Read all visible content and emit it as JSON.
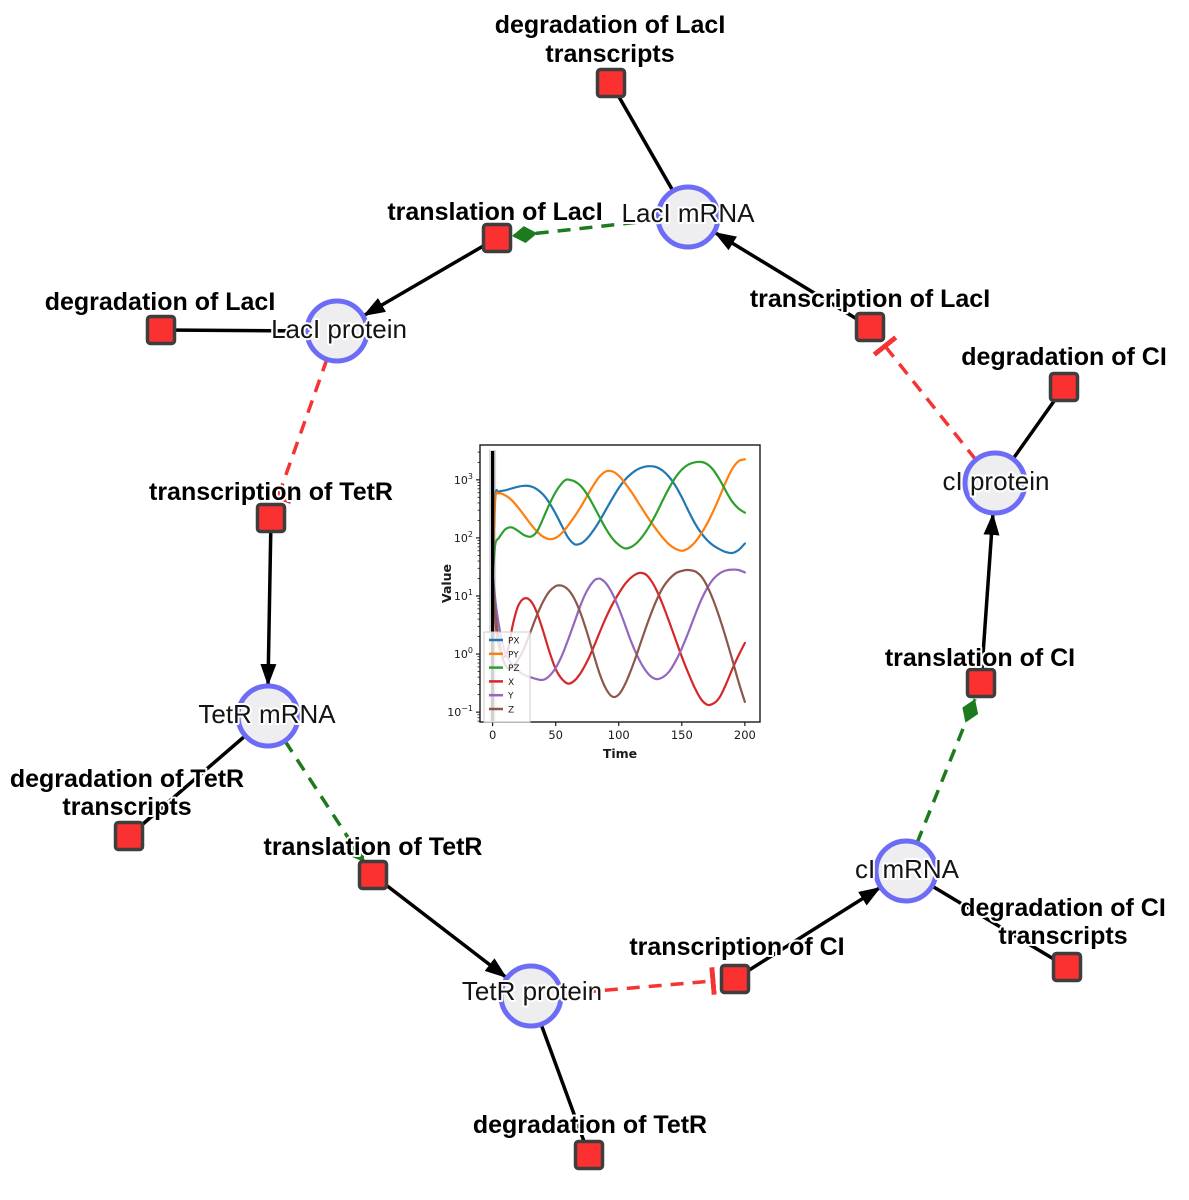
{
  "network": {
    "colors": {
      "species_fill": "#eeeef0",
      "species_border": "#6c6cf6",
      "reaction_fill": "#fb3131",
      "reaction_border": "#3e3e3e",
      "production_edge": "#000000",
      "activation_edge": "#1d7a1d",
      "inhibition_edge": "#f53434"
    },
    "species": [
      {
        "id": "laci-mrna",
        "label": "LacI mRNA"
      },
      {
        "id": "laci-protein",
        "label": "LacI protein"
      },
      {
        "id": "ci-protein",
        "label": "cI protein"
      },
      {
        "id": "tetr-mrna",
        "label": "TetR mRNA"
      },
      {
        "id": "tetr-protein",
        "label": "TetR protein"
      },
      {
        "id": "ci-mrna",
        "label": "cI mRNA"
      }
    ],
    "reactions": [
      {
        "id": "degradation-of-laci-transcripts",
        "lines": [
          "degradation of LacI",
          "transcripts"
        ]
      },
      {
        "id": "translation-of-laci",
        "lines": [
          "translation of LacI"
        ]
      },
      {
        "id": "degradation-of-laci",
        "lines": [
          "degradation of LacI"
        ]
      },
      {
        "id": "transcription-of-laci",
        "lines": [
          "transcription of LacI"
        ]
      },
      {
        "id": "degradation-of-ci",
        "lines": [
          "degradation of CI"
        ]
      },
      {
        "id": "transcription-of-tetr",
        "lines": [
          "transcription of TetR"
        ]
      },
      {
        "id": "degradation-of-tetr-transcripts",
        "lines": [
          "degradation of TetR",
          "transcripts"
        ]
      },
      {
        "id": "translation-of-tetr",
        "lines": [
          "translation of TetR"
        ]
      },
      {
        "id": "degradation-of-tetr",
        "lines": [
          "degradation of TetR"
        ]
      },
      {
        "id": "transcription-of-ci",
        "lines": [
          "transcription of CI"
        ]
      },
      {
        "id": "degradation-of-ci-transcripts",
        "lines": [
          "degradation of CI",
          "transcripts"
        ]
      },
      {
        "id": "translation-of-ci",
        "lines": [
          "translation of CI"
        ]
      }
    ]
  },
  "chart_data": {
    "type": "line",
    "title": "",
    "xlabel": "Time",
    "ylabel": "Value",
    "xlim": [
      -10,
      212
    ],
    "xticks": [
      0,
      50,
      100,
      150,
      200
    ],
    "yscale": "log",
    "ylim_log10": [
      -1.17,
      3.6
    ],
    "ytick_exponents": [
      3,
      2,
      1,
      0,
      -1
    ],
    "grid": false,
    "legend_position": "lower-left",
    "vline_x": 0,
    "series": [
      {
        "name": "PX",
        "color": "#1f77b4",
        "points": [
          [
            0,
            20
          ],
          [
            2,
            480
          ],
          [
            5,
            620
          ],
          [
            10,
            660
          ],
          [
            15,
            710
          ],
          [
            20,
            760
          ],
          [
            25,
            790
          ],
          [
            30,
            775
          ],
          [
            35,
            690
          ],
          [
            40,
            560
          ],
          [
            45,
            400
          ],
          [
            50,
            260
          ],
          [
            55,
            160
          ],
          [
            60,
            100
          ],
          [
            65,
            78
          ],
          [
            70,
            80
          ],
          [
            75,
            98
          ],
          [
            80,
            135
          ],
          [
            85,
            200
          ],
          [
            90,
            310
          ],
          [
            95,
            480
          ],
          [
            100,
            720
          ],
          [
            105,
            1000
          ],
          [
            110,
            1280
          ],
          [
            115,
            1520
          ],
          [
            120,
            1670
          ],
          [
            125,
            1720
          ],
          [
            130,
            1650
          ],
          [
            135,
            1430
          ],
          [
            140,
            1120
          ],
          [
            145,
            790
          ],
          [
            150,
            500
          ],
          [
            155,
            300
          ],
          [
            160,
            185
          ],
          [
            165,
            125
          ],
          [
            170,
            92
          ],
          [
            175,
            74
          ],
          [
            180,
            64
          ],
          [
            185,
            57
          ],
          [
            190,
            55
          ],
          [
            195,
            62
          ],
          [
            200,
            80
          ]
        ]
      },
      {
        "name": "PY",
        "color": "#ff7f0e",
        "points": [
          [
            0,
            20
          ],
          [
            2,
            430
          ],
          [
            5,
            580
          ],
          [
            10,
            540
          ],
          [
            15,
            450
          ],
          [
            20,
            340
          ],
          [
            25,
            245
          ],
          [
            30,
            175
          ],
          [
            35,
            130
          ],
          [
            40,
            105
          ],
          [
            45,
            95
          ],
          [
            50,
            100
          ],
          [
            55,
            122
          ],
          [
            60,
            165
          ],
          [
            65,
            235
          ],
          [
            70,
            345
          ],
          [
            75,
            530
          ],
          [
            80,
            810
          ],
          [
            85,
            1150
          ],
          [
            90,
            1400
          ],
          [
            95,
            1395
          ],
          [
            100,
            1180
          ],
          [
            105,
            880
          ],
          [
            110,
            620
          ],
          [
            115,
            420
          ],
          [
            120,
            285
          ],
          [
            125,
            195
          ],
          [
            130,
            138
          ],
          [
            135,
            100
          ],
          [
            140,
            77
          ],
          [
            145,
            65
          ],
          [
            150,
            60
          ],
          [
            155,
            66
          ],
          [
            160,
            82
          ],
          [
            165,
            115
          ],
          [
            170,
            175
          ],
          [
            175,
            290
          ],
          [
            180,
            510
          ],
          [
            185,
            930
          ],
          [
            190,
            1550
          ],
          [
            195,
            2100
          ],
          [
            200,
            2260
          ]
        ]
      },
      {
        "name": "PZ",
        "color": "#2ca02c",
        "points": [
          [
            0,
            20
          ],
          [
            2,
            75
          ],
          [
            5,
            100
          ],
          [
            10,
            140
          ],
          [
            15,
            152
          ],
          [
            20,
            133
          ],
          [
            25,
            112
          ],
          [
            30,
            105
          ],
          [
            35,
            128
          ],
          [
            40,
            215
          ],
          [
            45,
            380
          ],
          [
            50,
            620
          ],
          [
            55,
            880
          ],
          [
            58,
            1000
          ],
          [
            60,
            1010
          ],
          [
            65,
            940
          ],
          [
            70,
            780
          ],
          [
            75,
            560
          ],
          [
            80,
            360
          ],
          [
            85,
            225
          ],
          [
            90,
            142
          ],
          [
            95,
            98
          ],
          [
            100,
            76
          ],
          [
            105,
            66
          ],
          [
            110,
            70
          ],
          [
            115,
            85
          ],
          [
            120,
            115
          ],
          [
            125,
            170
          ],
          [
            130,
            270
          ],
          [
            135,
            450
          ],
          [
            140,
            730
          ],
          [
            145,
            1100
          ],
          [
            150,
            1500
          ],
          [
            155,
            1820
          ],
          [
            160,
            2000
          ],
          [
            165,
            2040
          ],
          [
            170,
            1870
          ],
          [
            175,
            1480
          ],
          [
            180,
            1010
          ],
          [
            185,
            640
          ],
          [
            190,
            420
          ],
          [
            195,
            320
          ],
          [
            200,
            272
          ]
        ]
      },
      {
        "name": "X",
        "color": "#d62728",
        "points": [
          [
            0,
            20
          ],
          [
            3,
            2.5
          ],
          [
            7,
            1.0
          ],
          [
            10,
            0.92
          ],
          [
            13,
            1.4
          ],
          [
            16,
            3.2
          ],
          [
            20,
            6.5
          ],
          [
            24,
            8.8
          ],
          [
            28,
            9.0
          ],
          [
            32,
            7.2
          ],
          [
            36,
            4.6
          ],
          [
            40,
            2.5
          ],
          [
            45,
            1.1
          ],
          [
            50,
            0.55
          ],
          [
            55,
            0.37
          ],
          [
            60,
            0.31
          ],
          [
            65,
            0.35
          ],
          [
            70,
            0.48
          ],
          [
            75,
            0.75
          ],
          [
            80,
            1.3
          ],
          [
            85,
            2.4
          ],
          [
            90,
            4.3
          ],
          [
            95,
            7.2
          ],
          [
            100,
            11
          ],
          [
            105,
            16
          ],
          [
            110,
            21
          ],
          [
            115,
            24.5
          ],
          [
            118,
            25
          ],
          [
            122,
            23
          ],
          [
            126,
            18
          ],
          [
            130,
            12.5
          ],
          [
            135,
            7
          ],
          [
            140,
            3.6
          ],
          [
            145,
            1.8
          ],
          [
            150,
            0.9
          ],
          [
            155,
            0.48
          ],
          [
            160,
            0.27
          ],
          [
            165,
            0.17
          ],
          [
            170,
            0.135
          ],
          [
            175,
            0.14
          ],
          [
            180,
            0.18
          ],
          [
            185,
            0.3
          ],
          [
            190,
            0.55
          ],
          [
            195,
            0.95
          ],
          [
            200,
            1.55
          ]
        ]
      },
      {
        "name": "Y",
        "color": "#9467bd",
        "points": [
          [
            0,
            25
          ],
          [
            3,
            6
          ],
          [
            7,
            1.8
          ],
          [
            10,
            1.05
          ],
          [
            15,
            0.68
          ],
          [
            20,
            0.52
          ],
          [
            25,
            0.44
          ],
          [
            30,
            0.4
          ],
          [
            35,
            0.37
          ],
          [
            40,
            0.36
          ],
          [
            45,
            0.42
          ],
          [
            50,
            0.58
          ],
          [
            55,
            0.95
          ],
          [
            60,
            1.8
          ],
          [
            65,
            3.6
          ],
          [
            70,
            7.2
          ],
          [
            75,
            12.5
          ],
          [
            80,
            18
          ],
          [
            83,
            19.8
          ],
          [
            86,
            19.5
          ],
          [
            90,
            16.5
          ],
          [
            95,
            11
          ],
          [
            100,
            6.2
          ],
          [
            105,
            3.2
          ],
          [
            110,
            1.6
          ],
          [
            115,
            0.9
          ],
          [
            120,
            0.57
          ],
          [
            125,
            0.42
          ],
          [
            130,
            0.37
          ],
          [
            135,
            0.4
          ],
          [
            140,
            0.5
          ],
          [
            145,
            0.75
          ],
          [
            150,
            1.25
          ],
          [
            155,
            2.3
          ],
          [
            160,
            4.4
          ],
          [
            165,
            8.2
          ],
          [
            170,
            13.5
          ],
          [
            175,
            19.5
          ],
          [
            180,
            24.5
          ],
          [
            185,
            27.5
          ],
          [
            190,
            28.5
          ],
          [
            195,
            28
          ],
          [
            200,
            25.5
          ]
        ]
      },
      {
        "name": "Z",
        "color": "#8c564b",
        "points": [
          [
            0,
            20
          ],
          [
            3,
            3.5
          ],
          [
            7,
            1.0
          ],
          [
            10,
            0.66
          ],
          [
            13,
            0.55
          ],
          [
            16,
            0.6
          ],
          [
            20,
            0.78
          ],
          [
            25,
            1.25
          ],
          [
            30,
            2.4
          ],
          [
            35,
            4.6
          ],
          [
            40,
            8
          ],
          [
            45,
            12
          ],
          [
            50,
            14.8
          ],
          [
            53,
            15.2
          ],
          [
            56,
            14.8
          ],
          [
            60,
            12.8
          ],
          [
            65,
            8.8
          ],
          [
            70,
            4.9
          ],
          [
            75,
            2.3
          ],
          [
            80,
            1.0
          ],
          [
            85,
            0.45
          ],
          [
            90,
            0.25
          ],
          [
            95,
            0.185
          ],
          [
            100,
            0.2
          ],
          [
            105,
            0.3
          ],
          [
            110,
            0.55
          ],
          [
            115,
            1.1
          ],
          [
            120,
            2.3
          ],
          [
            125,
            4.6
          ],
          [
            130,
            8.5
          ],
          [
            135,
            14
          ],
          [
            140,
            19.5
          ],
          [
            145,
            24.5
          ],
          [
            150,
            27
          ],
          [
            154,
            28
          ],
          [
            158,
            27.5
          ],
          [
            162,
            25.5
          ],
          [
            166,
            21
          ],
          [
            170,
            15
          ],
          [
            175,
            8.5
          ],
          [
            180,
            4.2
          ],
          [
            185,
            1.9
          ],
          [
            190,
            0.8
          ],
          [
            195,
            0.33
          ],
          [
            200,
            0.15
          ]
        ]
      }
    ]
  }
}
